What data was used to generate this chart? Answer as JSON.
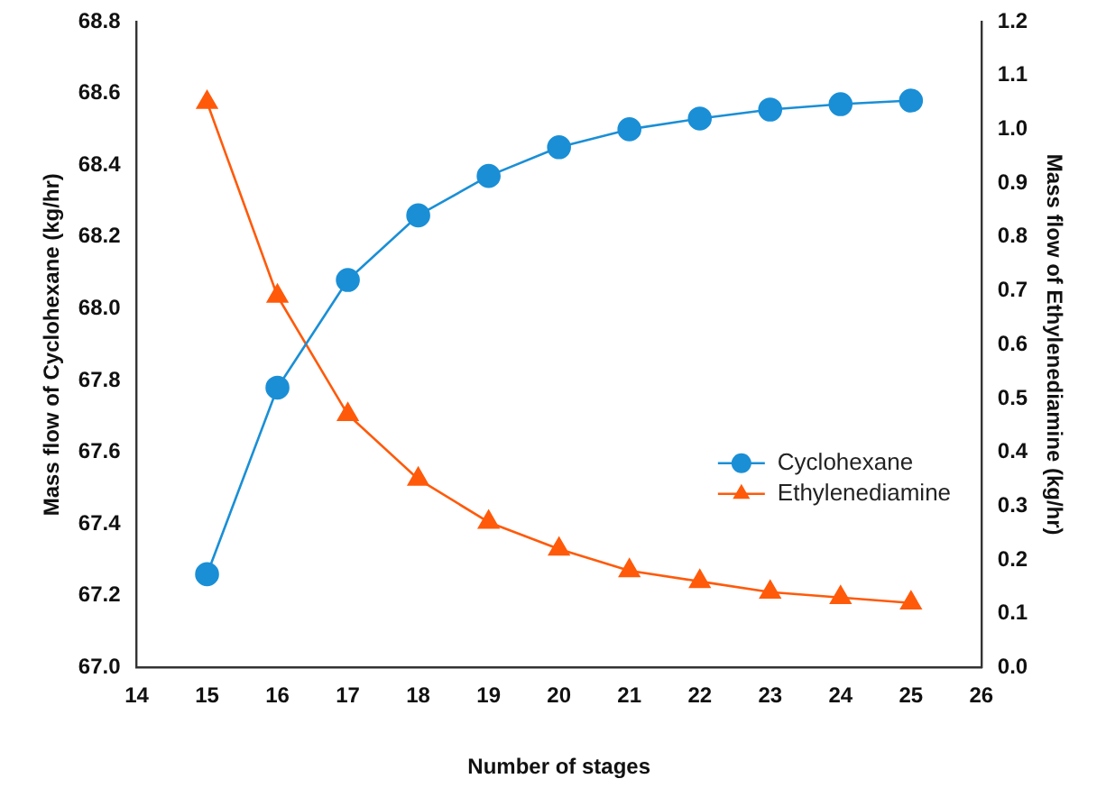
{
  "chart_data": {
    "type": "line",
    "xlabel": "Number of stages",
    "ylabel": "Mass flow of Cyclohexane (kg/hr)",
    "y2label": "Mass flow of Ethylenediamine (kg/hr)",
    "x": [
      15,
      16,
      17,
      18,
      19,
      20,
      21,
      22,
      23,
      24,
      25
    ],
    "series": [
      {
        "name": "Cyclohexane",
        "color": "#1a8fd6",
        "marker": "circle",
        "values": [
          67.26,
          67.78,
          68.08,
          68.26,
          68.37,
          68.45,
          68.5,
          68.53,
          68.555,
          68.57,
          68.58
        ]
      },
      {
        "name": "Ethylenediamine",
        "color": "#ff5a0a",
        "marker": "triangle",
        "axis": "y2",
        "values": [
          1.05,
          0.69,
          0.47,
          0.35,
          0.27,
          0.22,
          0.18,
          0.16,
          0.14,
          0.13,
          0.12
        ]
      }
    ],
    "xlim": [
      14,
      26
    ],
    "xticks": [
      14,
      15,
      16,
      17,
      18,
      19,
      20,
      21,
      22,
      23,
      24,
      25,
      26
    ],
    "ylim": [
      67.0,
      68.8
    ],
    "yticks": [
      {
        "value": 67,
        "label": "67.0"
      },
      67.2,
      67.4,
      67.6,
      67.8,
      {
        "value": 68,
        "label": "68.0"
      },
      68.2,
      68.4,
      68.6,
      68.8
    ],
    "y2lim": [
      0,
      1.2
    ],
    "y2ticks": [
      {
        "value": 0,
        "label": "0.0"
      },
      0.1,
      0.2,
      0.3,
      0.4,
      0.5,
      0.6,
      0.7,
      0.8,
      0.9,
      {
        "value": 1,
        "label": "1.0"
      },
      1.1,
      1.2
    ],
    "legend": "right",
    "grid": false
  }
}
